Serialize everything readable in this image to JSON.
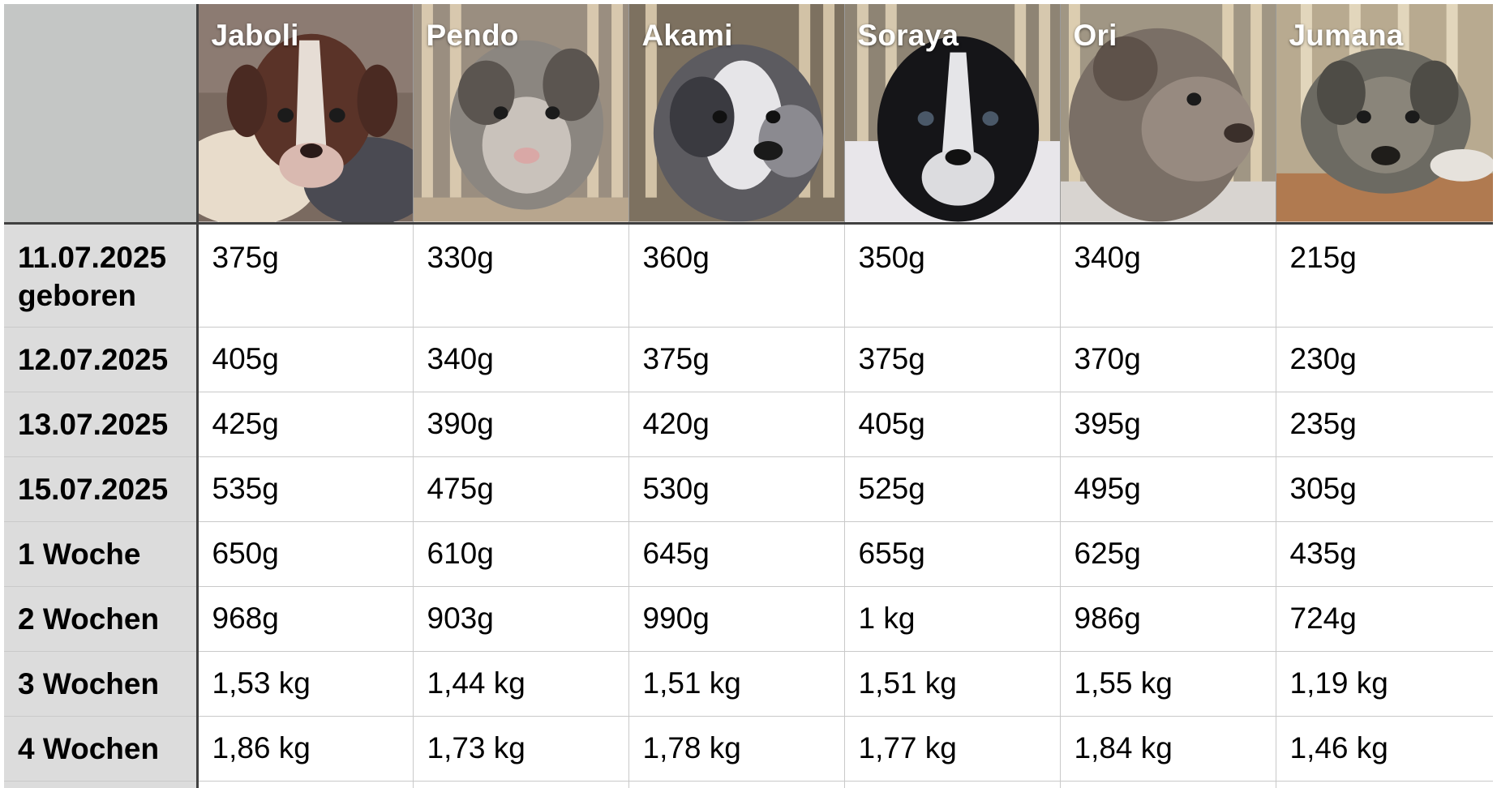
{
  "puppies": [
    {
      "name": "Jaboli"
    },
    {
      "name": "Pendo"
    },
    {
      "name": "Akami"
    },
    {
      "name": "Soraya"
    },
    {
      "name": "Ori"
    },
    {
      "name": "Jumana"
    }
  ],
  "rows": [
    {
      "date": "11.07.2025",
      "sublabel": "geboren",
      "weights": [
        "375g",
        "330g",
        "360g",
        "350g",
        "340g",
        "215g"
      ]
    },
    {
      "date": "12.07.2025",
      "weights": [
        "405g",
        "340g",
        "375g",
        "375g",
        "370g",
        "230g"
      ]
    },
    {
      "date": "13.07.2025",
      "weights": [
        "425g",
        "390g",
        "420g",
        "405g",
        "395g",
        "235g"
      ]
    },
    {
      "date": "15.07.2025",
      "weights": [
        "535g",
        "475g",
        "530g",
        "525g",
        "495g",
        "305g"
      ]
    },
    {
      "date": "1 Woche",
      "weights": [
        "650g",
        "610g",
        "645g",
        "655g",
        "625g",
        "435g"
      ]
    },
    {
      "date": "2 Wochen",
      "weights": [
        "968g",
        "903g",
        "990g",
        "1 kg",
        "986g",
        "724g"
      ]
    },
    {
      "date": "3 Wochen",
      "weights": [
        "1,53 kg",
        "1,44 kg",
        "1,51 kg",
        "1,51 kg",
        "1,55 kg",
        "1,19 kg"
      ]
    },
    {
      "date": "4 Wochen",
      "weights": [
        "1,86 kg",
        "1,73 kg",
        "1,78 kg",
        "1,77 kg",
        "1,84 kg",
        "1,46 kg"
      ]
    }
  ],
  "colors": {
    "label_column_bg": "#dcdcdc",
    "corner_bg": "#c4c6c5",
    "grid_line": "#c9c9c9",
    "header_divider": "#404040",
    "name_text": "#ffffff"
  }
}
